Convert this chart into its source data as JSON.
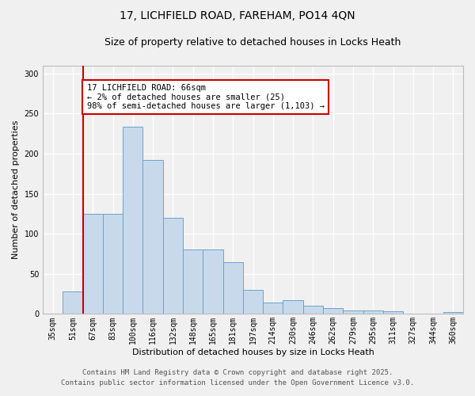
{
  "title_line1": "17, LICHFIELD ROAD, FAREHAM, PO14 4QN",
  "title_line2": "Size of property relative to detached houses in Locks Heath",
  "xlabel": "Distribution of detached houses by size in Locks Heath",
  "ylabel": "Number of detached properties",
  "categories": [
    "35sqm",
    "51sqm",
    "67sqm",
    "83sqm",
    "100sqm",
    "116sqm",
    "132sqm",
    "148sqm",
    "165sqm",
    "181sqm",
    "197sqm",
    "214sqm",
    "230sqm",
    "246sqm",
    "262sqm",
    "279sqm",
    "295sqm",
    "311sqm",
    "327sqm",
    "344sqm",
    "360sqm"
  ],
  "values": [
    0,
    28,
    125,
    125,
    233,
    192,
    120,
    80,
    80,
    65,
    30,
    14,
    17,
    10,
    7,
    4,
    4,
    3,
    0,
    0,
    2
  ],
  "bar_color": "#c9d9ec",
  "bar_edge_color": "#6aa3c8",
  "red_line_index": 2,
  "red_line_color": "#cc0000",
  "annotation_line1": "17 LICHFIELD ROAD: 66sqm",
  "annotation_line2": "← 2% of detached houses are smaller (25)",
  "annotation_line3": "98% of semi-detached houses are larger (1,103) →",
  "annotation_box_color": "#ffffff",
  "annotation_box_edge_color": "#cc0000",
  "ylim": [
    0,
    310
  ],
  "yticks": [
    0,
    50,
    100,
    150,
    200,
    250,
    300
  ],
  "bg_color": "#f0f0f0",
  "grid_color": "#ffffff",
  "footnote1": "Contains HM Land Registry data © Crown copyright and database right 2025.",
  "footnote2": "Contains public sector information licensed under the Open Government Licence v3.0.",
  "title_fontsize": 10,
  "subtitle_fontsize": 9,
  "axis_label_fontsize": 8,
  "tick_fontsize": 7,
  "annotation_fontsize": 7.5,
  "footnote_fontsize": 6.5
}
